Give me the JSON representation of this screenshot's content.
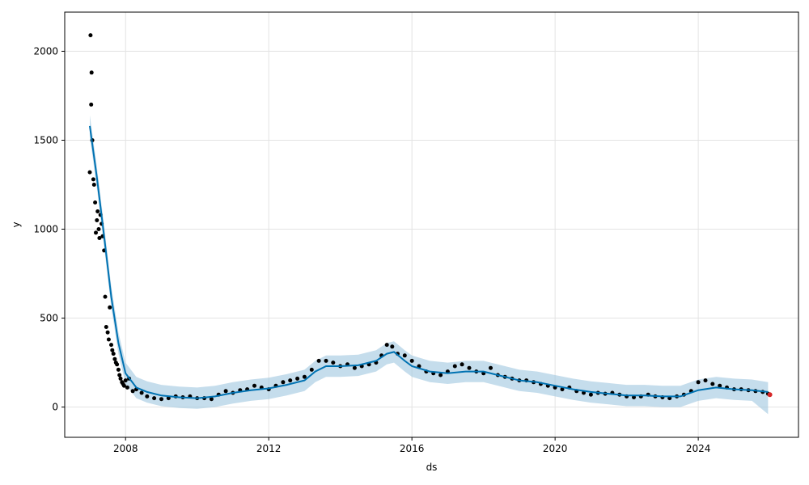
{
  "chart_data": {
    "type": "scatter",
    "title": "",
    "xlabel": "ds",
    "ylabel": "y",
    "xlim": [
      2006.3,
      2026.8
    ],
    "ylim": [
      -170,
      2220
    ],
    "x_ticks": [
      2008,
      2012,
      2016,
      2020,
      2024
    ],
    "x_tick_labels": [
      "2008",
      "2012",
      "2016",
      "2020",
      "2024"
    ],
    "y_ticks": [
      0,
      500,
      1000,
      1500,
      2000
    ],
    "y_tick_labels": [
      "0",
      "500",
      "1000",
      "1500",
      "2000"
    ],
    "grid": true,
    "colors": {
      "observed": "#000000",
      "forecast": "#0072B2",
      "interval": "#9ec7e0",
      "future_point": "#d62728"
    },
    "series": [
      {
        "kind": "points",
        "x": [
          2007.0,
          2007.02,
          2007.04,
          2007.05,
          2007.07,
          2007.1,
          2007.12,
          2007.15,
          2007.17,
          2007.2,
          2007.22,
          2007.25,
          2007.27,
          2007.3,
          2007.33,
          2007.36,
          2007.4,
          2007.43,
          2007.46,
          2007.5,
          2007.53,
          2007.56,
          2007.6,
          2007.63,
          2007.66,
          2007.7,
          2007.73,
          2007.76,
          2007.8,
          2007.83,
          2007.86,
          2007.9,
          2007.93,
          2007.96,
          2008.0,
          2008.05,
          2008.1,
          2008.2,
          2008.3,
          2008.45,
          2008.6,
          2008.8,
          2009.0,
          2009.2,
          2009.4,
          2009.6,
          2009.8,
          2010.0,
          2010.2,
          2010.4,
          2010.6,
          2010.8,
          2011.0,
          2011.2,
          2011.4,
          2011.6,
          2011.8,
          2012.0,
          2012.2,
          2012.4,
          2012.6,
          2012.8,
          2013.0,
          2013.2,
          2013.4,
          2013.6,
          2013.8,
          2014.0,
          2014.2,
          2014.4,
          2014.6,
          2014.8,
          2015.0,
          2015.15,
          2015.3,
          2015.45,
          2015.6,
          2015.8,
          2016.0,
          2016.2,
          2016.4,
          2016.6,
          2016.8,
          2017.0,
          2017.2,
          2017.4,
          2017.6,
          2017.8,
          2018.0,
          2018.2,
          2018.4,
          2018.6,
          2018.8,
          2019.0,
          2019.2,
          2019.4,
          2019.6,
          2019.8,
          2020.0,
          2020.2,
          2020.4,
          2020.6,
          2020.8,
          2021.0,
          2021.2,
          2021.4,
          2021.6,
          2021.8,
          2022.0,
          2022.2,
          2022.4,
          2022.6,
          2022.8,
          2023.0,
          2023.2,
          2023.4,
          2023.6,
          2023.8,
          2024.0,
          2024.2,
          2024.4,
          2024.6,
          2024.8,
          2025.0,
          2025.2,
          2025.4,
          2025.6,
          2025.8,
          2025.95
        ],
        "y": [
          1320,
          2090,
          1700,
          1880,
          1500,
          1280,
          1250,
          1150,
          980,
          1050,
          1100,
          1000,
          950,
          1080,
          1030,
          960,
          880,
          620,
          450,
          420,
          380,
          560,
          350,
          320,
          300,
          270,
          250,
          240,
          210,
          180,
          160,
          140,
          130,
          120,
          150,
          110,
          160,
          90,
          100,
          80,
          60,
          50,
          45,
          50,
          60,
          55,
          60,
          50,
          50,
          45,
          70,
          90,
          80,
          95,
          100,
          120,
          110,
          100,
          120,
          140,
          150,
          160,
          170,
          210,
          260,
          260,
          250,
          230,
          240,
          220,
          230,
          240,
          250,
          290,
          350,
          340,
          300,
          290,
          260,
          230,
          200,
          190,
          180,
          200,
          230,
          240,
          220,
          200,
          190,
          220,
          180,
          170,
          160,
          150,
          150,
          140,
          130,
          120,
          110,
          100,
          110,
          90,
          80,
          70,
          80,
          75,
          80,
          70,
          60,
          55,
          60,
          70,
          60,
          55,
          50,
          60,
          70,
          90,
          140,
          150,
          130,
          120,
          110,
          100,
          100,
          95,
          90,
          85,
          75
        ]
      },
      {
        "kind": "forecast_line",
        "x": [
          2007.0,
          2007.2,
          2007.4,
          2007.6,
          2007.8,
          2008.0,
          2008.3,
          2008.6,
          2009.0,
          2009.5,
          2010.0,
          2010.5,
          2011.0,
          2011.5,
          2012.0,
          2012.5,
          2013.0,
          2013.3,
          2013.6,
          2014.0,
          2014.5,
          2015.0,
          2015.3,
          2015.5,
          2015.8,
          2016.0,
          2016.5,
          2017.0,
          2017.5,
          2018.0,
          2018.5,
          2019.0,
          2019.5,
          2020.0,
          2020.5,
          2021.0,
          2021.5,
          2022.0,
          2022.5,
          2023.0,
          2023.5,
          2024.0,
          2024.5,
          2025.0,
          2025.5,
          2025.95
        ],
        "y": [
          1580,
          1290,
          960,
          620,
          360,
          190,
          110,
          85,
          65,
          55,
          50,
          60,
          80,
          95,
          105,
          125,
          150,
          200,
          230,
          230,
          235,
          260,
          300,
          310,
          260,
          230,
          200,
          190,
          200,
          200,
          175,
          150,
          140,
          120,
          100,
          85,
          75,
          65,
          65,
          60,
          60,
          95,
          110,
          100,
          95,
          85
        ]
      },
      {
        "kind": "interval",
        "x": [
          2007.0,
          2007.2,
          2007.4,
          2007.6,
          2007.8,
          2008.0,
          2008.3,
          2008.6,
          2009.0,
          2009.5,
          2010.0,
          2010.5,
          2011.0,
          2011.5,
          2012.0,
          2012.5,
          2013.0,
          2013.3,
          2013.6,
          2014.0,
          2014.5,
          2015.0,
          2015.3,
          2015.5,
          2015.8,
          2016.0,
          2016.5,
          2017.0,
          2017.5,
          2018.0,
          2018.5,
          2019.0,
          2019.5,
          2020.0,
          2020.5,
          2021.0,
          2021.5,
          2022.0,
          2022.5,
          2023.0,
          2023.5,
          2024.0,
          2024.5,
          2025.0,
          2025.5,
          2025.95
        ],
        "lower": [
          1520,
          1230,
          900,
          560,
          300,
          130,
          50,
          25,
          5,
          -5,
          -10,
          0,
          20,
          35,
          45,
          65,
          90,
          140,
          170,
          170,
          175,
          200,
          240,
          250,
          200,
          170,
          140,
          130,
          140,
          140,
          115,
          90,
          80,
          60,
          40,
          25,
          15,
          5,
          5,
          0,
          0,
          35,
          50,
          40,
          35,
          -40
        ],
        "upper": [
          1640,
          1350,
          1020,
          680,
          420,
          250,
          170,
          145,
          125,
          115,
          110,
          120,
          140,
          155,
          165,
          185,
          210,
          260,
          290,
          290,
          295,
          320,
          360,
          370,
          320,
          290,
          260,
          250,
          260,
          260,
          235,
          210,
          200,
          180,
          160,
          145,
          135,
          125,
          125,
          120,
          120,
          155,
          170,
          160,
          155,
          140
        ]
      },
      {
        "kind": "future_point",
        "x": [
          2026.0
        ],
        "y": [
          70
        ]
      }
    ]
  }
}
